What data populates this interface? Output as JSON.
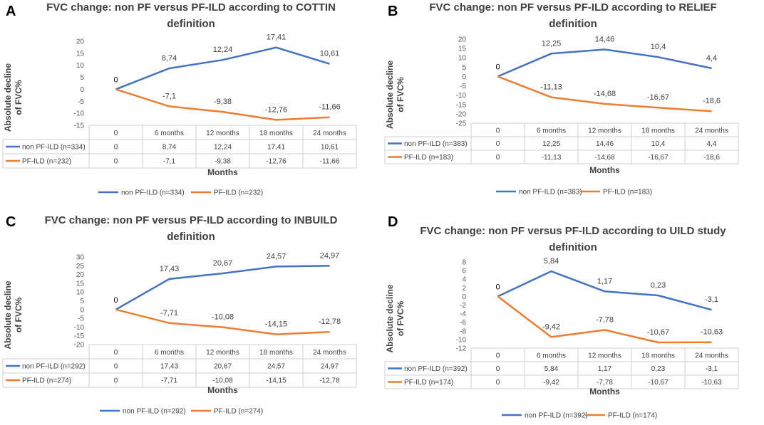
{
  "chart_data": [
    {
      "type": "line",
      "panel_letter": "A",
      "title_lines": [
        "FVC change: non PF versus PF-ILD according to COTTIN",
        "definition"
      ],
      "ylabel_lines": [
        "Absolute decline",
        "of FVC%"
      ],
      "xlabel": "Months",
      "categories": [
        "0",
        "6 months",
        "12 months",
        "18 months",
        "24 months"
      ],
      "yticks": [
        20,
        15,
        10,
        5,
        0,
        -5,
        -10,
        -15
      ],
      "ylim": [
        -15,
        20
      ],
      "series": [
        {
          "name": "non PF-ILD (n=334)",
          "color": "#4472c4",
          "values": [
            0,
            8.74,
            12.24,
            17.41,
            10.61
          ],
          "labels": [
            "0",
            "8,74",
            "12,24",
            "17,41",
            "10,61"
          ]
        },
        {
          "name": "PF-ILD (n=232)",
          "color": "#ed7d31",
          "values": [
            0,
            -7.1,
            -9.38,
            -12.76,
            -11.66
          ],
          "labels": [
            "0",
            "-7,1",
            "-9,38",
            "-12,76",
            "-11,66"
          ]
        }
      ]
    },
    {
      "type": "line",
      "panel_letter": "B",
      "title_lines": [
        "FVC change: non PF versus PF-ILD according to RELIEF",
        "definition"
      ],
      "ylabel_lines": [
        "Absolute decline",
        "of FVC%"
      ],
      "xlabel": "Months",
      "categories": [
        "0",
        "6 months",
        "12 months",
        "18 months",
        "24 months"
      ],
      "yticks": [
        20,
        15,
        10,
        5,
        0,
        -5,
        -10,
        -15,
        -20,
        -25
      ],
      "ylim": [
        -25,
        20
      ],
      "series": [
        {
          "name": "non PF-ILD (n=383)",
          "color": "#4472c4",
          "values": [
            0,
            12.25,
            14.46,
            10.4,
            4.4
          ],
          "labels": [
            "0",
            "12,25",
            "14,46",
            "10,4",
            "4,4"
          ]
        },
        {
          "name": "PF-ILD (n=183)",
          "color": "#ed7d31",
          "values": [
            0,
            -11.13,
            -14.68,
            -16.67,
            -18.6
          ],
          "labels": [
            "0",
            "-11,13",
            "-14,68",
            "-16,67",
            "-18,6"
          ]
        }
      ]
    },
    {
      "type": "line",
      "panel_letter": "C",
      "title_lines": [
        "FVC change: non PF versus PF-ILD according to INBUILD",
        "definition"
      ],
      "ylabel_lines": [
        "Absolute decline",
        "of FVC%"
      ],
      "xlabel": "Months",
      "categories": [
        "0",
        "6 months",
        "12 months",
        "18 months",
        "24 months"
      ],
      "yticks": [
        30,
        25,
        20,
        15,
        10,
        5,
        0,
        -5,
        -10,
        -15,
        -20
      ],
      "ylim": [
        -20,
        30
      ],
      "series": [
        {
          "name": "non PF-ILD (n=292)",
          "color": "#4472c4",
          "values": [
            0,
            17.43,
            20.67,
            24.57,
            24.97
          ],
          "labels": [
            "0",
            "17,43",
            "20,67",
            "24,57",
            "24,97"
          ]
        },
        {
          "name": "PF-ILD (n=274)",
          "color": "#ed7d31",
          "values": [
            0,
            -7.71,
            -10.08,
            -14.15,
            -12.78
          ],
          "labels": [
            "0",
            "-7,71",
            "-10,08",
            "-14,15",
            "-12,78"
          ]
        }
      ]
    },
    {
      "type": "line",
      "panel_letter": "D",
      "title_lines": [
        "FVC change: non PF versus PF-ILD according to UILD study",
        "definition"
      ],
      "ylabel_lines": [
        "Absolute decline",
        "of FVC%"
      ],
      "xlabel": "Months",
      "categories": [
        "0",
        "6 months",
        "12 months",
        "18 months",
        "24 months"
      ],
      "yticks": [
        8,
        6,
        4,
        2,
        0,
        -2,
        -4,
        -6,
        -8,
        -10,
        -12
      ],
      "ylim": [
        -12,
        8
      ],
      "series": [
        {
          "name": "non PF-ILD (n=392)",
          "color": "#4472c4",
          "values": [
            0,
            5.84,
            1.17,
            0.23,
            -3.1
          ],
          "labels": [
            "0",
            "5,84",
            "1,17",
            "0,23",
            "-3,1"
          ]
        },
        {
          "name": "PF-ILD (n=174)",
          "color": "#ed7d31",
          "values": [
            0,
            -9.42,
            -7.78,
            -10.67,
            -10.63
          ],
          "labels": [
            "0",
            "-9,42",
            "-7,78",
            "-10,67",
            "-10,63"
          ]
        }
      ]
    }
  ]
}
